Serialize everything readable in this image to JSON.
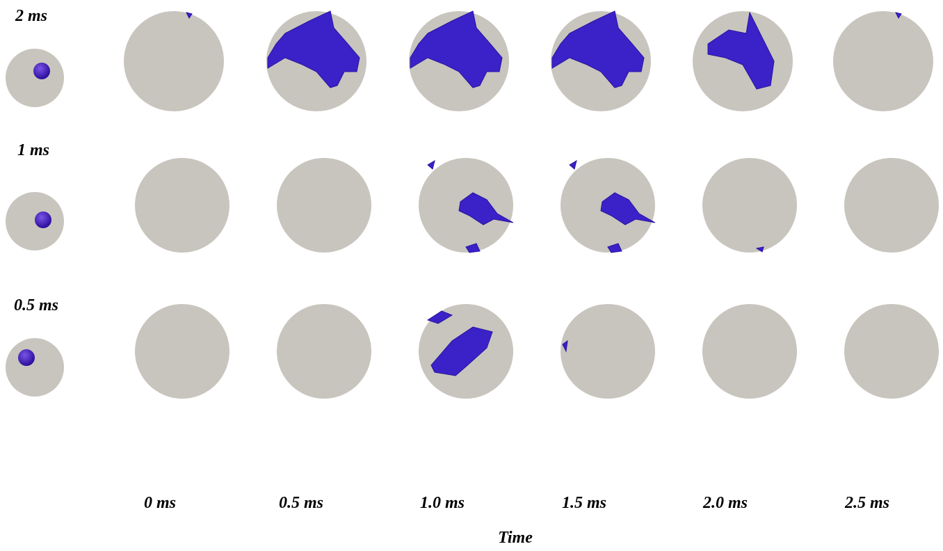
{
  "rows": [
    {
      "label": "2 ms"
    },
    {
      "label": "1 ms"
    },
    {
      "label": "0.5 ms"
    }
  ],
  "columns": [
    "0 ms",
    "0.5 ms",
    "1.0 ms",
    "1.5 ms",
    "2.0 ms",
    "2.5 ms"
  ],
  "axis_label": "Time"
}
